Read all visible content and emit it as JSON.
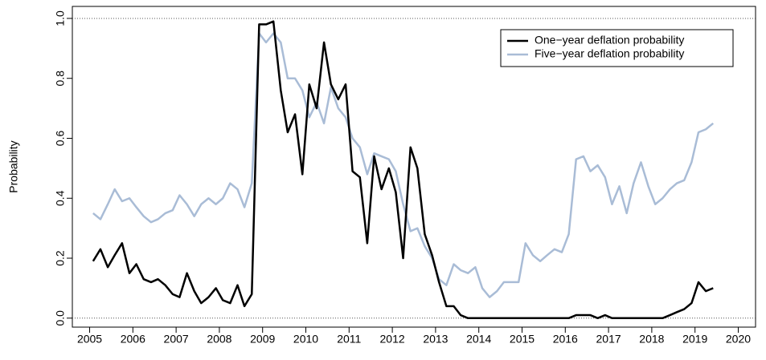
{
  "chart_data": {
    "type": "line",
    "y_label": "Probability",
    "x": [
      2005.08,
      2005.25,
      2005.42,
      2005.58,
      2005.75,
      2005.92,
      2006.08,
      2006.25,
      2006.42,
      2006.58,
      2006.75,
      2006.92,
      2007.08,
      2007.25,
      2007.42,
      2007.58,
      2007.75,
      2007.92,
      2008.08,
      2008.25,
      2008.42,
      2008.58,
      2008.75,
      2008.92,
      2009.08,
      2009.25,
      2009.42,
      2009.58,
      2009.75,
      2009.92,
      2010.08,
      2010.25,
      2010.42,
      2010.58,
      2010.75,
      2010.92,
      2011.08,
      2011.25,
      2011.42,
      2011.58,
      2011.75,
      2011.92,
      2012.08,
      2012.25,
      2012.42,
      2012.58,
      2012.75,
      2012.92,
      2013.08,
      2013.25,
      2013.42,
      2013.58,
      2013.75,
      2013.92,
      2014.08,
      2014.25,
      2014.42,
      2014.58,
      2014.75,
      2014.92,
      2015.08,
      2015.25,
      2015.42,
      2015.58,
      2015.75,
      2015.92,
      2016.08,
      2016.25,
      2016.42,
      2016.58,
      2016.75,
      2016.92,
      2017.08,
      2017.25,
      2017.42,
      2017.58,
      2017.75,
      2017.92,
      2018.08,
      2018.25,
      2018.42,
      2018.58,
      2018.75,
      2018.92,
      2019.08,
      2019.25,
      2019.42
    ],
    "series": [
      {
        "name": "One−year deflation probability",
        "color": "#000000",
        "values": [
          0.19,
          0.23,
          0.17,
          0.21,
          0.25,
          0.15,
          0.18,
          0.13,
          0.12,
          0.13,
          0.11,
          0.08,
          0.07,
          0.15,
          0.09,
          0.05,
          0.07,
          0.1,
          0.06,
          0.05,
          0.11,
          0.04,
          0.08,
          0.98,
          0.98,
          0.99,
          0.76,
          0.62,
          0.68,
          0.48,
          0.78,
          0.7,
          0.92,
          0.78,
          0.73,
          0.78,
          0.49,
          0.47,
          0.25,
          0.54,
          0.43,
          0.5,
          0.42,
          0.2,
          0.57,
          0.5,
          0.28,
          0.21,
          0.12,
          0.04,
          0.04,
          0.01,
          0.0,
          0.0,
          0.0,
          0.0,
          0.0,
          0.0,
          0.0,
          0.0,
          0.0,
          0.0,
          0.0,
          0.0,
          0.0,
          0.0,
          0.0,
          0.01,
          0.01,
          0.01,
          0.0,
          0.01,
          0.0,
          0.0,
          0.0,
          0.0,
          0.0,
          0.0,
          0.0,
          0.0,
          0.01,
          0.02,
          0.03,
          0.05,
          0.12,
          0.09,
          0.1
        ]
      },
      {
        "name": "Five−year deflation probability",
        "color": "#a9bcd6",
        "values": [
          0.35,
          0.33,
          0.38,
          0.43,
          0.39,
          0.4,
          0.37,
          0.34,
          0.32,
          0.33,
          0.35,
          0.36,
          0.41,
          0.38,
          0.34,
          0.38,
          0.4,
          0.38,
          0.4,
          0.45,
          0.43,
          0.37,
          0.45,
          0.95,
          0.92,
          0.95,
          0.92,
          0.8,
          0.8,
          0.76,
          0.67,
          0.72,
          0.65,
          0.77,
          0.7,
          0.67,
          0.6,
          0.57,
          0.48,
          0.55,
          0.54,
          0.53,
          0.49,
          0.38,
          0.29,
          0.3,
          0.24,
          0.2,
          0.13,
          0.11,
          0.18,
          0.16,
          0.15,
          0.17,
          0.1,
          0.07,
          0.09,
          0.12,
          0.12,
          0.12,
          0.25,
          0.21,
          0.19,
          0.21,
          0.23,
          0.22,
          0.28,
          0.53,
          0.54,
          0.49,
          0.51,
          0.47,
          0.38,
          0.44,
          0.35,
          0.45,
          0.52,
          0.44,
          0.38,
          0.4,
          0.43,
          0.45,
          0.46,
          0.52,
          0.62,
          0.63,
          0.65
        ]
      }
    ],
    "xlim": [
      2004.6,
      2020.4
    ],
    "xticks": [
      2005,
      2006,
      2007,
      2008,
      2009,
      2010,
      2011,
      2012,
      2013,
      2014,
      2015,
      2016,
      2017,
      2018,
      2019,
      2020
    ],
    "ylim": [
      -0.03,
      1.04
    ],
    "yticks": [
      {
        "value": 0,
        "label": "0.0"
      },
      0.2,
      0.4,
      0.6,
      0.8,
      {
        "value": 1,
        "label": "1.0"
      }
    ],
    "hlines": [
      0,
      1
    ],
    "legend": "top-right"
  }
}
